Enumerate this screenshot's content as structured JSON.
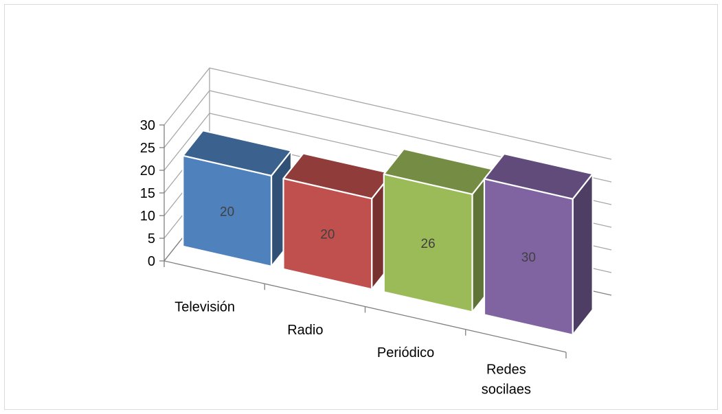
{
  "chart_data": {
    "type": "bar",
    "style": "3d-column",
    "categories": [
      "Televisión",
      "Radio",
      "Periódico",
      "Redes socilaes"
    ],
    "series": [
      {
        "values": [
          20,
          20,
          26,
          30
        ]
      }
    ],
    "data_labels": [
      "20",
      "20",
      "26",
      "30"
    ],
    "ylim": [
      0,
      30
    ],
    "yticks": [
      0,
      5,
      10,
      15,
      20,
      25,
      30
    ],
    "ytick_labels": [
      "0",
      "5",
      "10",
      "15",
      "20",
      "25",
      "30"
    ],
    "grid": true,
    "legend": "none",
    "title": "",
    "xlabel": "",
    "ylabel": "",
    "colors": {
      "bars": [
        "#4f81bd",
        "#c0504d",
        "#9bbb59",
        "#8064a2"
      ],
      "grid": "#a6a6a6",
      "axis": "#7f7f7f"
    }
  }
}
